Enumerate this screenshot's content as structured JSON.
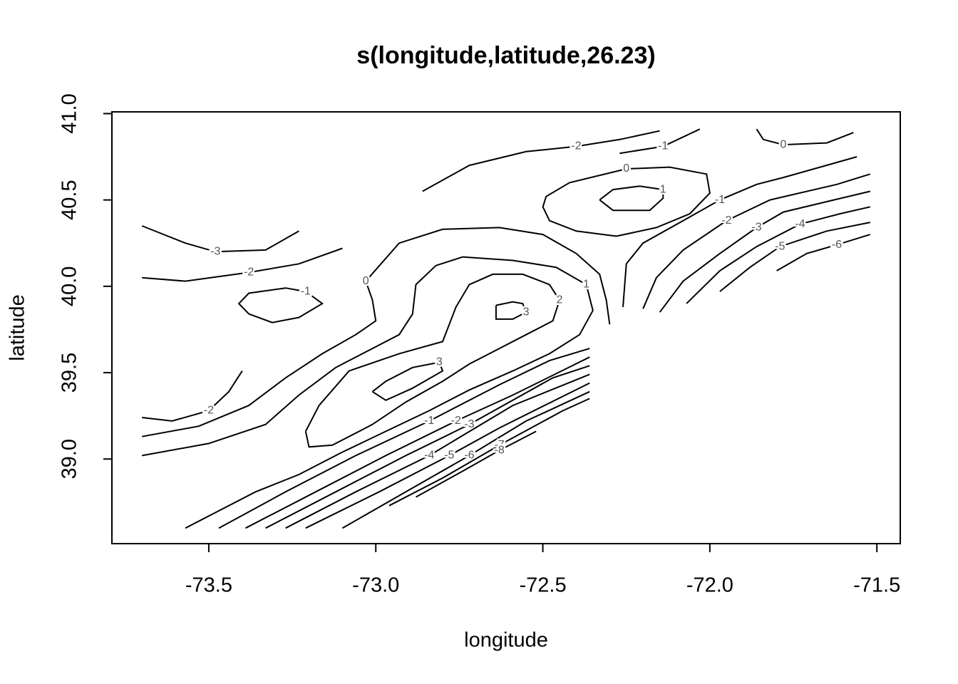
{
  "chart_data": {
    "type": "contour",
    "title": "s(longitude,latitude,26.23)",
    "x_label": "longitude",
    "y_label": "latitude",
    "xlim": [
      -73.79,
      -71.43
    ],
    "ylim": [
      38.51,
      41.01
    ],
    "xticks": [
      -73.5,
      {
        "value": -73,
        "label": "-73.0"
      },
      -72.5,
      {
        "value": -72,
        "label": "-72.0"
      },
      -71.5
    ],
    "yticks": [
      {
        "value": 39,
        "label": "39.0"
      },
      39.5,
      {
        "value": 40,
        "label": "40.0"
      },
      40.5,
      {
        "value": 41,
        "label": "41.0"
      }
    ],
    "color": "#000000",
    "contours": [
      {
        "level": -3,
        "x": [
          -73.7,
          -73.57,
          -73.48,
          -73.33,
          -73.23
        ],
        "y": [
          40.35,
          40.25,
          40.2,
          40.21,
          40.32
        ]
      },
      {
        "level": -2,
        "x": [
          -73.7,
          -73.57,
          -73.38,
          -73.23,
          -73.1
        ],
        "y": [
          40.05,
          40.03,
          40.08,
          40.13,
          40.22
        ]
      },
      {
        "level": -1,
        "x": [
          -73.38,
          -73.31,
          -73.23,
          -73.16,
          -73.21,
          -73.27,
          -73.38,
          -73.41,
          -73.38
        ],
        "y": [
          39.84,
          39.79,
          39.82,
          39.9,
          39.97,
          39.99,
          39.96,
          39.9,
          39.84
        ]
      },
      {
        "level": -2,
        "x": [
          -73.7,
          -73.61,
          -73.5,
          -73.44,
          -73.4
        ],
        "y": [
          39.24,
          39.22,
          39.28,
          39.39,
          39.51
        ]
      },
      {
        "level": 0,
        "x": [
          -73.7,
          -73.53,
          -73.38,
          -73.27,
          -73.16,
          -73.06,
          -73.0,
          -73.01,
          -73.03,
          -72.93,
          -72.8,
          -72.63,
          -72.5,
          -72.4,
          -72.33,
          -72.31,
          -72.3
        ],
        "y": [
          39.13,
          39.19,
          39.31,
          39.47,
          39.61,
          39.72,
          39.8,
          39.92,
          40.03,
          40.25,
          40.33,
          40.34,
          40.3,
          40.19,
          40.07,
          39.92,
          39.78
        ]
      },
      {
        "level": 1,
        "x": [
          -73.7,
          -73.5,
          -73.33,
          -73.23,
          -73.12,
          -73.01,
          -72.93,
          -72.89,
          -72.88,
          -72.82,
          -72.74,
          -72.59,
          -72.46,
          -72.37,
          -72.35,
          -72.39,
          -72.48,
          -72.59,
          -72.72,
          -72.84,
          -72.97,
          -73.1,
          -73.23,
          -73.36,
          -73.48,
          -73.57
        ],
        "y": [
          39.02,
          39.09,
          39.2,
          39.37,
          39.53,
          39.64,
          39.72,
          39.84,
          40.01,
          40.12,
          40.17,
          40.15,
          40.11,
          40.01,
          39.86,
          39.72,
          39.61,
          39.51,
          39.4,
          39.28,
          39.16,
          39.04,
          38.91,
          38.81,
          38.69,
          38.6
        ]
      },
      {
        "level": 2,
        "x": [
          -73.21,
          -73.2,
          -73.13,
          -73.01,
          -72.91,
          -72.8,
          -72.72,
          -72.63,
          -72.55,
          -72.47,
          -72.45,
          -72.48,
          -72.56,
          -72.65,
          -72.72,
          -72.76,
          -72.8,
          -72.93,
          -73.08,
          -73.17,
          -73.21
        ],
        "y": [
          39.16,
          39.07,
          39.08,
          39.2,
          39.33,
          39.45,
          39.55,
          39.64,
          39.72,
          39.8,
          39.92,
          40.01,
          40.07,
          40.07,
          40.01,
          39.88,
          39.68,
          39.61,
          39.51,
          39.31,
          39.16
        ]
      },
      {
        "level": 3,
        "x": [
          -73.01,
          -72.97,
          -72.89,
          -72.8,
          -72.81,
          -72.89,
          -72.97,
          -73.01
        ],
        "y": [
          39.39,
          39.34,
          39.41,
          39.51,
          39.56,
          39.53,
          39.45,
          39.39
        ]
      },
      {
        "level": 3,
        "x": [
          -72.64,
          -72.64,
          -72.59,
          -72.55,
          -72.56,
          -72.59,
          -72.64
        ],
        "y": [
          39.89,
          39.81,
          39.81,
          39.85,
          39.9,
          39.91,
          39.89
        ]
      },
      {
        "level": -1,
        "x": [
          -73.47,
          -73.27,
          -73.06,
          -72.84,
          -72.63,
          -72.48,
          -72.36
        ],
        "y": [
          38.6,
          38.81,
          39.02,
          39.22,
          39.43,
          39.57,
          39.64
        ]
      },
      {
        "level": -2,
        "x": [
          -73.39,
          -73.18,
          -72.97,
          -72.76,
          -72.59,
          -72.36
        ],
        "y": [
          38.6,
          38.81,
          39.02,
          39.22,
          39.37,
          39.59
        ]
      },
      {
        "level": -3,
        "x": [
          -73.33,
          -73.12,
          -72.91,
          -72.72,
          -72.47,
          -72.36
        ],
        "y": [
          38.6,
          38.81,
          39.02,
          39.2,
          39.47,
          39.54
        ]
      },
      {
        "level": -4,
        "x": [
          -73.27,
          -73.06,
          -72.84,
          -72.59,
          -72.36
        ],
        "y": [
          38.6,
          38.81,
          39.02,
          39.31,
          39.49
        ]
      },
      {
        "level": -5,
        "x": [
          -73.21,
          -72.99,
          -72.78,
          -72.63,
          -72.36
        ],
        "y": [
          38.6,
          38.81,
          39.02,
          39.18,
          39.44
        ]
      },
      {
        "level": -6,
        "x": [
          -73.1,
          -72.91,
          -72.72,
          -72.55,
          -72.36
        ],
        "y": [
          38.6,
          38.81,
          39.02,
          39.22,
          39.39
        ]
      },
      {
        "level": -7,
        "x": [
          -72.96,
          -72.8,
          -72.63,
          -72.44,
          -72.36
        ],
        "y": [
          38.73,
          38.89,
          39.08,
          39.28,
          39.35
        ]
      },
      {
        "level": -8,
        "x": [
          -72.88,
          -72.74,
          -72.63,
          -72.52
        ],
        "y": [
          38.78,
          38.93,
          39.05,
          39.16
        ]
      },
      {
        "level": -2,
        "x": [
          -72.86,
          -72.72,
          -72.55,
          -72.4,
          -72.27,
          -72.15
        ],
        "y": [
          40.55,
          40.7,
          40.78,
          40.81,
          40.85,
          40.9
        ]
      },
      {
        "level": -1,
        "x": [
          -72.27,
          -72.14,
          -72.03
        ],
        "y": [
          40.77,
          40.81,
          40.91
        ]
      },
      {
        "level": 0,
        "x": [
          -71.86,
          -71.84,
          -71.78,
          -71.65,
          -71.57
        ],
        "y": [
          40.91,
          40.85,
          40.82,
          40.83,
          40.89
        ]
      },
      {
        "level": 1,
        "x": [
          -72.33,
          -72.29,
          -72.18,
          -72.14,
          -72.14,
          -72.21,
          -72.29,
          -72.33
        ],
        "y": [
          40.5,
          40.44,
          40.44,
          40.51,
          40.56,
          40.58,
          40.56,
          40.5
        ]
      },
      {
        "level": 0,
        "x": [
          -72.28,
          -72.16,
          -72.06,
          -72.0,
          -72.01,
          -72.12,
          -72.25,
          -72.42,
          -72.49,
          -72.5,
          -72.48,
          -72.4,
          -72.28
        ],
        "y": [
          40.29,
          40.34,
          40.42,
          40.54,
          40.65,
          40.69,
          40.68,
          40.6,
          40.52,
          40.46,
          40.38,
          40.32,
          40.29
        ]
      },
      {
        "level": -1,
        "x": [
          -72.26,
          -72.25,
          -72.2,
          -72.08,
          -71.97,
          -71.86,
          -71.78,
          -71.67,
          -71.56
        ],
        "y": [
          39.88,
          40.13,
          40.25,
          40.38,
          40.5,
          40.59,
          40.63,
          40.69,
          40.75
        ]
      },
      {
        "level": -2,
        "x": [
          -72.2,
          -72.16,
          -72.08,
          -71.95,
          -71.82,
          -71.62,
          -71.52
        ],
        "y": [
          39.87,
          40.05,
          40.21,
          40.38,
          40.5,
          40.59,
          40.65
        ]
      },
      {
        "level": -3,
        "x": [
          -72.15,
          -72.08,
          -71.97,
          -71.86,
          -71.78,
          -71.65,
          -71.52
        ],
        "y": [
          39.85,
          40.03,
          40.19,
          40.34,
          40.43,
          40.49,
          40.55
        ]
      },
      {
        "level": -4,
        "x": [
          -72.07,
          -71.97,
          -71.86,
          -71.73,
          -71.61,
          -71.52
        ],
        "y": [
          39.9,
          40.09,
          40.23,
          40.36,
          40.42,
          40.46
        ]
      },
      {
        "level": -5,
        "x": [
          -71.97,
          -71.88,
          -71.79,
          -71.65,
          -71.52
        ],
        "y": [
          39.97,
          40.11,
          40.23,
          40.32,
          40.37
        ]
      },
      {
        "level": -6,
        "x": [
          -71.8,
          -71.71,
          -71.62,
          -71.52
        ],
        "y": [
          40.09,
          40.19,
          40.24,
          40.3
        ]
      }
    ]
  }
}
